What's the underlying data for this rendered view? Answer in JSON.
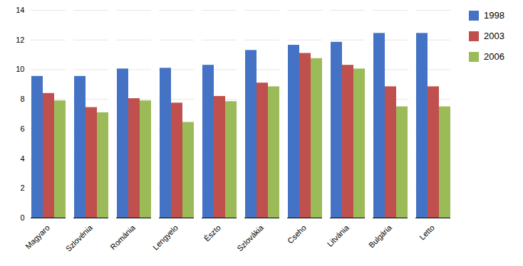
{
  "chart_data": {
    "type": "bar",
    "categories": [
      "Magyaro",
      "Szlovénia",
      "Románia",
      "Lengyelo",
      "Észto",
      "Szlovákia",
      "Cseho",
      "Litvánia",
      "Bulgária",
      "Letto"
    ],
    "series": [
      {
        "name": "1998",
        "color": "#4472C4",
        "values": [
          9.55,
          9.55,
          10.05,
          10.1,
          10.3,
          11.3,
          11.65,
          11.85,
          12.45,
          12.45
        ]
      },
      {
        "name": "2003",
        "color": "#C0504D",
        "values": [
          8.4,
          7.45,
          8.05,
          7.75,
          8.2,
          9.1,
          11.1,
          10.3,
          8.85,
          8.85
        ]
      },
      {
        "name": "2006",
        "color": "#9BBB59",
        "values": [
          7.9,
          7.1,
          7.9,
          6.45,
          7.85,
          8.85,
          10.75,
          10.05,
          7.5,
          7.5
        ]
      }
    ],
    "ylim": [
      0,
      14
    ],
    "yticks": [
      0,
      2,
      4,
      6,
      8,
      10,
      12,
      14
    ],
    "grid": true,
    "legend": "right"
  }
}
